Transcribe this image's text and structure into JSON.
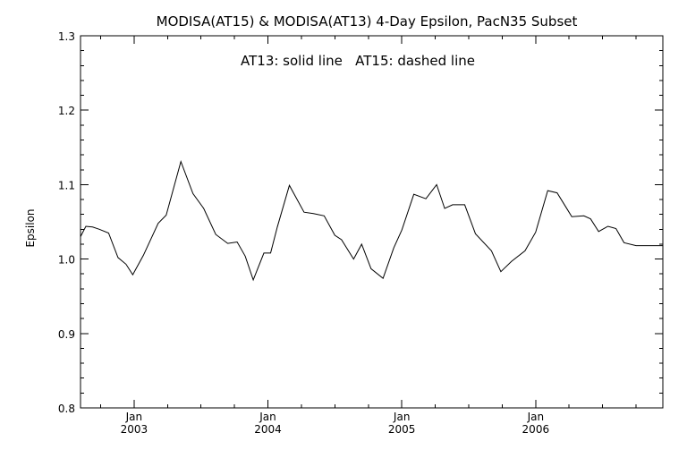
{
  "chart_data": {
    "type": "line",
    "title": "MODISA(AT15) & MODISA(AT13) 4-Day Epsilon, PacN35 Subset",
    "annotation": "AT13: solid line   AT15: dashed line",
    "xlabel": "",
    "ylabel": "Epsilon",
    "xlim": [
      2002.6,
      2006.95
    ],
    "ylim": [
      0.8,
      1.3
    ],
    "y_ticks": [
      {
        "value": 0.8,
        "label": "0.8"
      },
      {
        "value": 0.9,
        "label": "0.9"
      },
      {
        "value": 1.0,
        "label": "1.0"
      },
      {
        "value": 1.1,
        "label": "1.1"
      },
      {
        "value": 1.2,
        "label": "1.2"
      },
      {
        "value": 1.3,
        "label": "1.3"
      }
    ],
    "x_ticks": [
      {
        "value": 2003.0,
        "month": "Jan",
        "year": "2003"
      },
      {
        "value": 2004.0,
        "month": "Jan",
        "year": "2004"
      },
      {
        "value": 2005.0,
        "month": "Jan",
        "year": "2005"
      },
      {
        "value": 2006.0,
        "month": "Jan",
        "year": "2006"
      }
    ],
    "grid": false,
    "series": [
      {
        "style": "solid",
        "x": [
          2002.6,
          2002.64,
          2002.69,
          2002.74,
          2002.81,
          2002.88,
          2002.94,
          2002.99,
          2003.07,
          2003.18,
          2003.24,
          2003.35,
          2003.44,
          2003.52,
          2003.61,
          2003.7,
          2003.77,
          2003.83,
          2003.89,
          2003.97,
          2004.02,
          2004.07,
          2004.16,
          2004.27,
          2004.34,
          2004.42,
          2004.5,
          2004.55,
          2004.64,
          2004.7,
          2004.77,
          2004.86,
          2004.94,
          2005.0,
          2005.09,
          2005.18,
          2005.26,
          2005.32,
          2005.38,
          2005.47,
          2005.55,
          2005.67,
          2005.74,
          2005.82,
          2005.92,
          2006.0,
          2006.09,
          2006.16,
          2006.27,
          2006.36,
          2006.41,
          2006.47,
          2006.54,
          2006.6,
          2006.66,
          2006.75,
          2006.81,
          2006.88,
          2006.95
        ],
        "y": [
          1.03,
          1.044,
          1.043,
          1.04,
          1.035,
          1.002,
          0.993,
          0.979,
          1.005,
          1.048,
          1.059,
          1.131,
          1.088,
          1.068,
          1.033,
          1.021,
          1.023,
          1.004,
          0.972,
          1.008,
          1.008,
          1.043,
          1.099,
          1.063,
          1.061,
          1.058,
          1.032,
          1.026,
          1.0,
          1.02,
          0.987,
          0.974,
          1.015,
          1.039,
          1.087,
          1.081,
          1.1,
          1.068,
          1.073,
          1.073,
          1.034,
          1.011,
          0.983,
          0.997,
          1.011,
          1.036,
          1.092,
          1.089,
          1.057,
          1.058,
          1.054,
          1.037,
          1.044,
          1.041,
          1.022,
          1.018,
          1.018,
          1.018,
          1.018
        ]
      }
    ]
  }
}
